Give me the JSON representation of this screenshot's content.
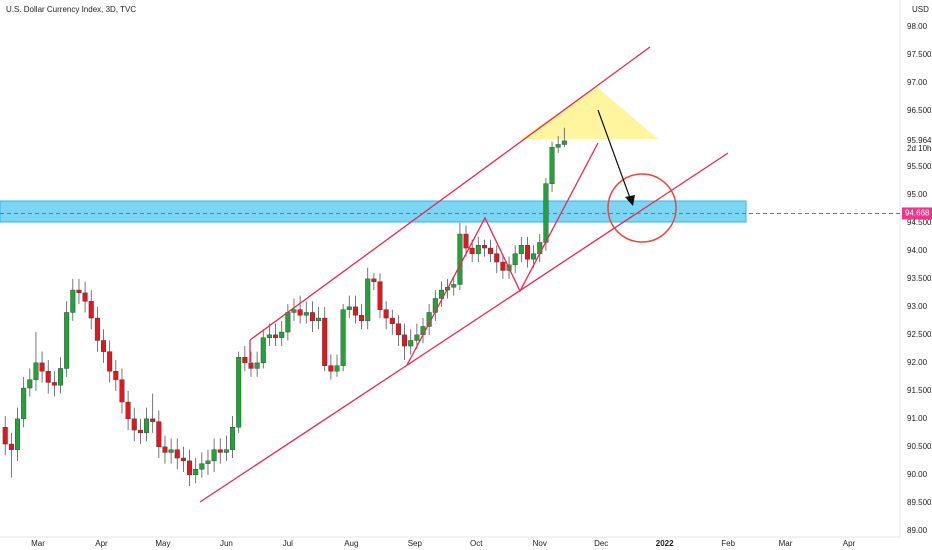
{
  "chart_data": {
    "type": "candlestick",
    "title": "U.S. Dollar Currency Index, 3D, TVC",
    "currency": "USD",
    "x": [
      44,
      47,
      50,
      53,
      56,
      59,
      62,
      65,
      68,
      71,
      74,
      77,
      80,
      83,
      86,
      89,
      92,
      95,
      98,
      101,
      104,
      107,
      110,
      113,
      116,
      119,
      122,
      125,
      128,
      131,
      134,
      137,
      140,
      143,
      146,
      149,
      152,
      155,
      158,
      161,
      164,
      167,
      170,
      173,
      176,
      179,
      182,
      185,
      188,
      191,
      194,
      197,
      200,
      203,
      206,
      209,
      212,
      215,
      218,
      221,
      224,
      227,
      230,
      233,
      236,
      239,
      242,
      245,
      248,
      251,
      254,
      257,
      260,
      263,
      266,
      269,
      272,
      275,
      278,
      281,
      284,
      287,
      290,
      293,
      296,
      299,
      302,
      305,
      308,
      311,
      314,
      317
    ],
    "open": [
      90.85,
      90.55,
      90.45,
      91.0,
      91.55,
      91.7,
      92.0,
      91.85,
      91.65,
      91.6,
      91.9,
      92.9,
      93.3,
      93.25,
      93.1,
      92.8,
      92.4,
      92.2,
      91.85,
      91.7,
      91.3,
      91.0,
      90.8,
      90.75,
      91.0,
      90.95,
      90.5,
      90.4,
      90.45,
      90.3,
      90.25,
      90.0,
      90.1,
      90.2,
      90.25,
      90.45,
      90.4,
      90.45,
      90.85,
      92.1,
      92.0,
      91.9,
      92.0,
      92.45,
      92.5,
      92.45,
      92.55,
      92.9,
      92.95,
      92.85,
      92.9,
      92.75,
      92.8,
      91.95,
      91.85,
      91.95,
      92.95,
      93.0,
      92.85,
      92.75,
      93.5,
      93.45,
      92.95,
      92.8,
      92.7,
      92.5,
      92.3,
      92.4,
      92.5,
      92.65,
      92.9,
      93.15,
      93.3,
      93.35,
      93.4,
      94.3,
      94.05,
      93.95,
      94.1,
      94.05,
      93.95,
      93.8,
      93.65,
      93.75,
      93.95,
      94.1,
      93.85,
      93.95,
      94.15,
      95.2,
      95.85,
      95.9
    ],
    "high": [
      91.05,
      90.75,
      91.2,
      91.75,
      91.9,
      92.55,
      92.2,
      92.05,
      91.85,
      92.1,
      93.1,
      93.5,
      93.5,
      93.45,
      93.3,
      93.0,
      92.6,
      92.4,
      92.05,
      91.9,
      91.5,
      91.2,
      91.0,
      91.2,
      91.45,
      91.15,
      90.7,
      90.65,
      90.65,
      90.5,
      90.45,
      90.3,
      90.4,
      90.45,
      90.65,
      90.65,
      90.7,
      91.05,
      92.2,
      92.3,
      92.2,
      92.2,
      92.6,
      92.7,
      92.7,
      92.75,
      93.05,
      93.15,
      93.2,
      93.1,
      93.1,
      93.0,
      93.0,
      92.15,
      92.15,
      93.05,
      93.2,
      93.2,
      93.05,
      93.7,
      93.6,
      93.6,
      93.1,
      92.95,
      92.85,
      92.7,
      92.6,
      92.7,
      92.8,
      93.05,
      93.3,
      93.45,
      93.5,
      93.55,
      94.5,
      94.45,
      94.2,
      94.25,
      94.2,
      94.2,
      94.1,
      93.95,
      93.9,
      94.1,
      94.25,
      94.25,
      94.1,
      94.3,
      95.3,
      95.95,
      96.05,
      96.2
    ],
    "low": [
      90.35,
      89.95,
      90.25,
      90.85,
      91.4,
      91.5,
      91.65,
      91.45,
      91.4,
      91.45,
      91.75,
      92.75,
      93.05,
      92.9,
      92.6,
      92.2,
      92.0,
      91.65,
      91.5,
      91.1,
      90.8,
      90.6,
      90.55,
      90.6,
      90.75,
      90.3,
      90.2,
      90.2,
      90.1,
      90.05,
      89.8,
      89.85,
      89.95,
      90.0,
      90.05,
      90.2,
      90.25,
      90.3,
      90.75,
      91.85,
      91.75,
      91.75,
      91.9,
      92.3,
      92.3,
      92.3,
      92.4,
      92.75,
      92.7,
      92.7,
      92.55,
      92.6,
      91.85,
      91.7,
      91.75,
      91.85,
      92.8,
      92.7,
      92.6,
      92.6,
      93.3,
      92.8,
      92.6,
      92.5,
      92.3,
      92.05,
      92.15,
      92.25,
      92.35,
      92.5,
      92.75,
      93.0,
      93.15,
      93.2,
      93.3,
      93.9,
      93.8,
      93.8,
      93.9,
      93.8,
      93.6,
      93.5,
      93.5,
      93.6,
      93.8,
      93.7,
      93.7,
      93.8,
      94.0,
      95.05,
      95.75,
      95.85
    ],
    "close": [
      90.55,
      90.45,
      91.0,
      91.55,
      91.7,
      92.0,
      91.85,
      91.65,
      91.6,
      91.9,
      92.9,
      93.3,
      93.25,
      93.1,
      92.8,
      92.4,
      92.2,
      91.85,
      91.7,
      91.3,
      91.0,
      90.8,
      90.75,
      91.0,
      90.95,
      90.5,
      90.4,
      90.45,
      90.3,
      90.25,
      90.0,
      90.1,
      90.2,
      90.25,
      90.45,
      90.4,
      90.45,
      90.85,
      92.1,
      92.0,
      91.9,
      92.0,
      92.45,
      92.5,
      92.45,
      92.55,
      92.9,
      92.95,
      92.85,
      92.9,
      92.75,
      92.8,
      91.95,
      91.85,
      91.95,
      92.95,
      93.0,
      92.85,
      92.75,
      93.5,
      93.45,
      92.95,
      92.8,
      92.7,
      92.5,
      92.3,
      92.4,
      92.5,
      92.65,
      92.9,
      93.15,
      93.3,
      93.35,
      93.4,
      94.3,
      94.05,
      93.95,
      94.1,
      94.05,
      93.95,
      93.8,
      93.65,
      93.75,
      93.95,
      94.1,
      93.85,
      93.95,
      94.15,
      95.2,
      95.85,
      95.9,
      95.964
    ],
    "up_color": "#22a33a",
    "down_color": "#e3161f",
    "xlim": [
      41.45,
      480.9
    ],
    "xticks": [
      {
        "value": 60,
        "label": "Mar"
      },
      {
        "value": 91,
        "label": "Apr"
      },
      {
        "value": 121,
        "label": "May"
      },
      {
        "value": 152,
        "label": "Jun"
      },
      {
        "value": 182,
        "label": "Jul"
      },
      {
        "value": 213,
        "label": "Aug"
      },
      {
        "value": 244,
        "label": "Sep"
      },
      {
        "value": 274,
        "label": "Oct"
      },
      {
        "value": 305,
        "label": "Nov"
      },
      {
        "value": 335,
        "label": "Dec"
      },
      {
        "value": 366,
        "label": "2022"
      },
      {
        "value": 397,
        "label": "Feb"
      },
      {
        "value": 425,
        "label": "Mar"
      },
      {
        "value": 456,
        "label": "Apr"
      }
    ],
    "ylim": [
      88.89,
      98.48
    ],
    "yticks": [
      {
        "value": 98,
        "label": "98.00"
      },
      {
        "value": 97.5,
        "label": "97.500"
      },
      {
        "value": 97,
        "label": "97.00"
      },
      {
        "value": 96.5,
        "label": "96.500"
      },
      {
        "value": 95.5,
        "label": "95.500"
      },
      {
        "value": 95,
        "label": "95.00"
      },
      {
        "value": 94.5,
        "label": "94.500"
      },
      {
        "value": 94,
        "label": "94.00"
      },
      {
        "value": 93.5,
        "label": "93.500"
      },
      {
        "value": 93,
        "label": "93.00"
      },
      {
        "value": 92.5,
        "label": "92.500"
      },
      {
        "value": 92,
        "label": "92.00"
      },
      {
        "value": 91.5,
        "label": "91.500"
      },
      {
        "value": 91,
        "label": "91.00"
      },
      {
        "value": 90.5,
        "label": "90.500"
      },
      {
        "value": 90,
        "label": "90.00"
      },
      {
        "value": 89.5,
        "label": "89.500"
      },
      {
        "value": 89,
        "label": "89.00"
      }
    ],
    "last_price": 95.964,
    "countdown": "2d 10h",
    "price_line": 94.668,
    "price_line_color": "#f0368a"
  }
}
